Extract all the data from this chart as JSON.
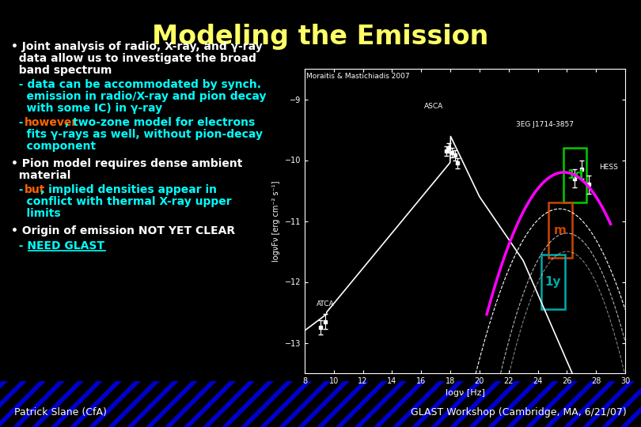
{
  "title": "Modeling the Emission",
  "title_color": "#FFFF66",
  "bg_color": "#000000",
  "footer_left": "Patrick Slane (CfA)",
  "footer_right": "GLAST Workshop (Cambridge, MA, 6/21/07)",
  "white_color": "#FFFFFF",
  "yellow_color": "#FFFF00",
  "cyan_color": "#00FFFF",
  "orange_color": "#FF6600",
  "green_color": "#00CC00",
  "magenta_color": "#FF00FF",
  "red_orange_color": "#CC4400",
  "teal_color": "#00AAAA"
}
